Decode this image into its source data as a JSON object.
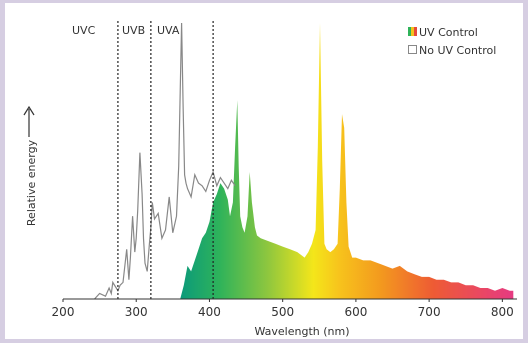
{
  "chart_data": {
    "type": "area",
    "title": "",
    "xlabel": "Wavelength (nm)",
    "ylabel": "Relative energy",
    "xlim": [
      200,
      820
    ],
    "ylim": [
      0,
      1
    ],
    "x_ticks": [
      200,
      300,
      400,
      500,
      600,
      700,
      800
    ],
    "x_tick_labels": [
      "200",
      "300",
      "400",
      "500",
      "600",
      "700",
      "800"
    ],
    "grid": false,
    "legend_position": "top-right",
    "regions": [
      {
        "label": "UVC",
        "from": 200,
        "to": 280
      },
      {
        "label": "UVB",
        "from": 280,
        "to": 320
      },
      {
        "label": "UVA",
        "from": 320,
        "to": 400
      }
    ],
    "boundaries": [
      275,
      320,
      405
    ],
    "series": [
      {
        "name": "No UV Control",
        "color": "#888888",
        "x": [
          243,
          250,
          258,
          263,
          266,
          268,
          275,
          278,
          282,
          287,
          290,
          292,
          295,
          298,
          300,
          302,
          305,
          308,
          310,
          312,
          315,
          318,
          320,
          322,
          325,
          330,
          335,
          340,
          345,
          350,
          355,
          358,
          360,
          362,
          364,
          366,
          368,
          370,
          375,
          380,
          385,
          390,
          395,
          400,
          405,
          410,
          415,
          420,
          425,
          430,
          435
        ],
        "values": [
          0.0,
          0.02,
          0.01,
          0.04,
          0.02,
          0.06,
          0.03,
          0.05,
          0.06,
          0.18,
          0.07,
          0.15,
          0.3,
          0.17,
          0.22,
          0.32,
          0.53,
          0.38,
          0.22,
          0.13,
          0.1,
          0.2,
          0.26,
          0.35,
          0.29,
          0.31,
          0.22,
          0.25,
          0.37,
          0.24,
          0.3,
          0.48,
          0.75,
          1.0,
          0.7,
          0.45,
          0.42,
          0.4,
          0.37,
          0.45,
          0.42,
          0.41,
          0.39,
          0.43,
          0.46,
          0.41,
          0.44,
          0.42,
          0.4,
          0.43,
          0.41
        ]
      },
      {
        "name": "UV Control",
        "color": "spectrum",
        "x": [
          360,
          365,
          370,
          375,
          380,
          385,
          390,
          395,
          400,
          405,
          410,
          415,
          420,
          425,
          428,
          432,
          435,
          438,
          440,
          442,
          445,
          448,
          452,
          455,
          458,
          462,
          465,
          470,
          480,
          490,
          500,
          510,
          520,
          530,
          535,
          540,
          545,
          548,
          551,
          554,
          557,
          560,
          565,
          570,
          575,
          578,
          581,
          584,
          587,
          590,
          595,
          600,
          610,
          620,
          630,
          640,
          650,
          660,
          670,
          680,
          690,
          700,
          710,
          720,
          730,
          740,
          750,
          760,
          770,
          780,
          790,
          800,
          810,
          815
        ],
        "values": [
          0.0,
          0.05,
          0.12,
          0.1,
          0.14,
          0.18,
          0.22,
          0.24,
          0.28,
          0.35,
          0.38,
          0.42,
          0.4,
          0.36,
          0.3,
          0.35,
          0.55,
          0.72,
          0.48,
          0.3,
          0.26,
          0.24,
          0.3,
          0.46,
          0.35,
          0.26,
          0.23,
          0.22,
          0.21,
          0.2,
          0.19,
          0.18,
          0.17,
          0.15,
          0.17,
          0.2,
          0.25,
          0.55,
          1.0,
          0.5,
          0.2,
          0.18,
          0.17,
          0.18,
          0.2,
          0.4,
          0.67,
          0.62,
          0.35,
          0.19,
          0.15,
          0.15,
          0.14,
          0.14,
          0.13,
          0.12,
          0.11,
          0.12,
          0.1,
          0.09,
          0.08,
          0.08,
          0.07,
          0.07,
          0.06,
          0.06,
          0.05,
          0.05,
          0.04,
          0.04,
          0.03,
          0.04,
          0.03,
          0.03
        ]
      }
    ]
  }
}
